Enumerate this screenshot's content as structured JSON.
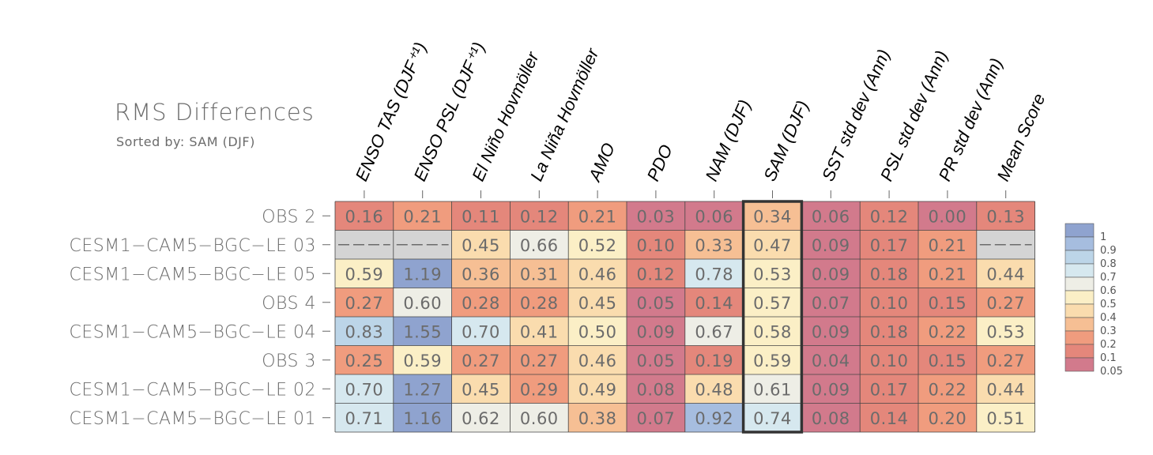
{
  "title": "RMS Differences",
  "subtitle": "Sorted by: SAM (DJF)",
  "chart_data": {
    "type": "heatmap",
    "title": "RMS Differences",
    "subtitle": "Sorted by: SAM (DJF)",
    "sorted_by": "SAM (DJF)",
    "highlighted_column": "SAM (DJF)",
    "columns": [
      "ENSO TAS (DJF⁺¹)",
      "ENSO PSL (DJF⁺¹)",
      "El Niño Hovmöller",
      "La Niña Hovmöller",
      "AMO",
      "PDO",
      "NAM (DJF)",
      "SAM (DJF)",
      "SST std dev (Ann)",
      "PSL std dev (Ann)",
      "PR std dev (Ann)",
      "Mean Score"
    ],
    "rows": [
      "OBS 2",
      "CESM1−CAM5−BGC−LE 03",
      "CESM1−CAM5−BGC−LE 05",
      "OBS 4",
      "CESM1−CAM5−BGC−LE 04",
      "OBS 3",
      "CESM1−CAM5−BGC−LE 02",
      "CESM1−CAM5−BGC−LE 01"
    ],
    "values": [
      [
        "0.16",
        "0.21",
        "0.11",
        "0.12",
        "0.21",
        "0.03",
        "0.06",
        "0.34",
        "0.06",
        "0.12",
        "0.00",
        "0.13"
      ],
      [
        null,
        null,
        "0.45",
        "0.66",
        "0.52",
        "0.10",
        "0.33",
        "0.47",
        "0.09",
        "0.17",
        "0.21",
        null
      ],
      [
        "0.59",
        "1.19",
        "0.36",
        "0.31",
        "0.46",
        "0.12",
        "0.78",
        "0.53",
        "0.09",
        "0.18",
        "0.21",
        "0.44"
      ],
      [
        "0.27",
        "0.60",
        "0.28",
        "0.28",
        "0.45",
        "0.05",
        "0.14",
        "0.57",
        "0.07",
        "0.10",
        "0.15",
        "0.27"
      ],
      [
        "0.83",
        "1.55",
        "0.70",
        "0.41",
        "0.50",
        "0.09",
        "0.67",
        "0.58",
        "0.09",
        "0.18",
        "0.22",
        "0.53"
      ],
      [
        "0.25",
        "0.59",
        "0.27",
        "0.27",
        "0.46",
        "0.05",
        "0.19",
        "0.59",
        "0.04",
        "0.10",
        "0.15",
        "0.27"
      ],
      [
        "0.70",
        "1.27",
        "0.45",
        "0.29",
        "0.49",
        "0.08",
        "0.48",
        "0.61",
        "0.09",
        "0.17",
        "0.22",
        "0.44"
      ],
      [
        "0.71",
        "1.16",
        "0.62",
        "0.60",
        "0.38",
        "0.07",
        "0.92",
        "0.74",
        "0.08",
        "0.14",
        "0.20",
        "0.51"
      ]
    ],
    "missing_label": "- - -",
    "colorbar": {
      "levels": [
        "1",
        "0.9",
        "0.8",
        "0.7",
        "0.6",
        "0.5",
        "0.4",
        "0.3",
        "0.2",
        "0.1",
        "0.05"
      ],
      "colors": [
        "#8fa3cf",
        "#a6bddf",
        "#bcd5e8",
        "#d6e8ef",
        "#eeeee6",
        "#fbefc6",
        "#fadcae",
        "#f6bf94",
        "#f09c7e",
        "#e4877b",
        "#d27a8c"
      ],
      "missing_color": "#d4d4d4"
    }
  }
}
